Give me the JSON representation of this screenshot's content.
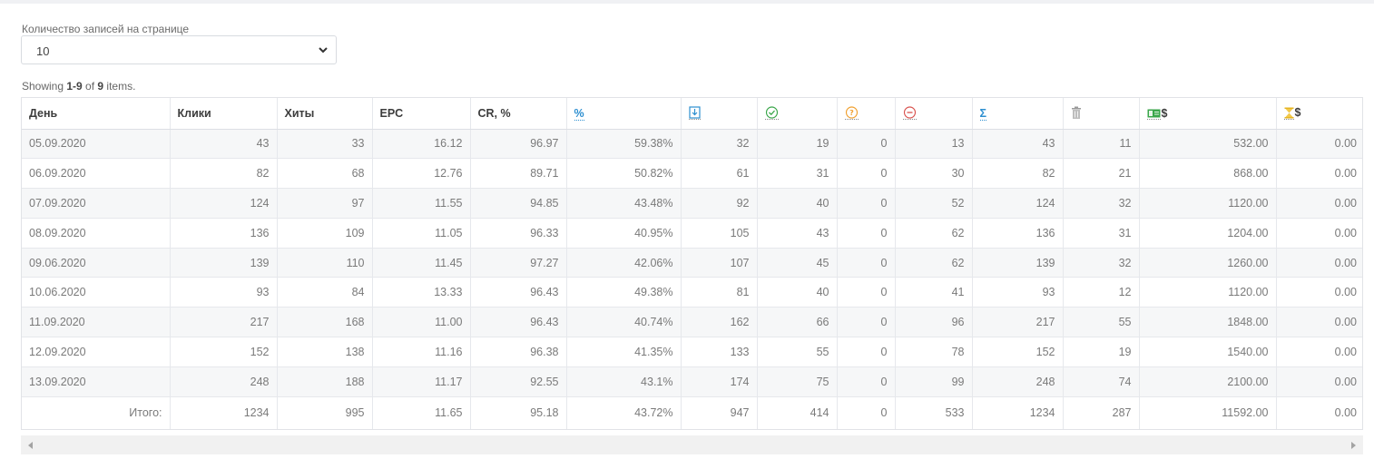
{
  "per_page": {
    "label": "Количество записей на странице",
    "selected": "10"
  },
  "summary": {
    "prefix": "Showing ",
    "range": "1-9",
    "of": " of ",
    "total": "9",
    "suffix": " items."
  },
  "columns": [
    {
      "key": "day",
      "label": "День"
    },
    {
      "key": "clicks",
      "label": "Клики"
    },
    {
      "key": "hits",
      "label": "Хиты"
    },
    {
      "key": "epc",
      "label": "EPC"
    },
    {
      "key": "cr",
      "label": "CR, %"
    },
    {
      "key": "percent",
      "label": "%",
      "icon": "percent-icon"
    },
    {
      "key": "leads",
      "label": "",
      "icon": "download-icon"
    },
    {
      "key": "approved",
      "label": "",
      "icon": "check-circle-icon"
    },
    {
      "key": "hold",
      "label": "",
      "icon": "question-circle-icon"
    },
    {
      "key": "rejected",
      "label": "",
      "icon": "minus-circle-icon"
    },
    {
      "key": "sum",
      "label": "Σ",
      "icon": "sigma-icon"
    },
    {
      "key": "trash",
      "label": "",
      "icon": "trash-icon"
    },
    {
      "key": "paid",
      "label": "$",
      "icon": "money-icon"
    },
    {
      "key": "pending",
      "label": "$",
      "icon": "hourglass-icon"
    }
  ],
  "rows": [
    [
      "05.09.2020",
      "43",
      "33",
      "16.12",
      "96.97",
      "59.38%",
      "32",
      "19",
      "0",
      "13",
      "43",
      "11",
      "532.00",
      "0.00"
    ],
    [
      "06.09.2020",
      "82",
      "68",
      "12.76",
      "89.71",
      "50.82%",
      "61",
      "31",
      "0",
      "30",
      "82",
      "21",
      "868.00",
      "0.00"
    ],
    [
      "07.09.2020",
      "124",
      "97",
      "11.55",
      "94.85",
      "43.48%",
      "92",
      "40",
      "0",
      "52",
      "124",
      "32",
      "1120.00",
      "0.00"
    ],
    [
      "08.09.2020",
      "136",
      "109",
      "11.05",
      "96.33",
      "40.95%",
      "105",
      "43",
      "0",
      "62",
      "136",
      "31",
      "1204.00",
      "0.00"
    ],
    [
      "09.06.2020",
      "139",
      "110",
      "11.45",
      "97.27",
      "42.06%",
      "107",
      "45",
      "0",
      "62",
      "139",
      "32",
      "1260.00",
      "0.00"
    ],
    [
      "10.06.2020",
      "93",
      "84",
      "13.33",
      "96.43",
      "49.38%",
      "81",
      "40",
      "0",
      "41",
      "93",
      "12",
      "1120.00",
      "0.00"
    ],
    [
      "11.09.2020",
      "217",
      "168",
      "11.00",
      "96.43",
      "40.74%",
      "162",
      "66",
      "0",
      "96",
      "217",
      "55",
      "1848.00",
      "0.00"
    ],
    [
      "12.09.2020",
      "152",
      "138",
      "11.16",
      "96.38",
      "41.35%",
      "133",
      "55",
      "0",
      "78",
      "152",
      "19",
      "1540.00",
      "0.00"
    ],
    [
      "13.09.2020",
      "248",
      "188",
      "11.17",
      "92.55",
      "43.1%",
      "174",
      "75",
      "0",
      "99",
      "248",
      "74",
      "2100.00",
      "0.00"
    ]
  ],
  "totals": [
    "Итого:",
    "1234",
    "995",
    "11.65",
    "95.18",
    "43.72%",
    "947",
    "414",
    "0",
    "533",
    "1234",
    "287",
    "11592.00",
    "0.00"
  ],
  "colors": {
    "accent_blue": "#2d8fd0",
    "green": "#3aa64a",
    "orange": "#f0a030",
    "red": "#d9534f",
    "gray_icon": "#9a9a9a",
    "gold": "#e6b422"
  }
}
